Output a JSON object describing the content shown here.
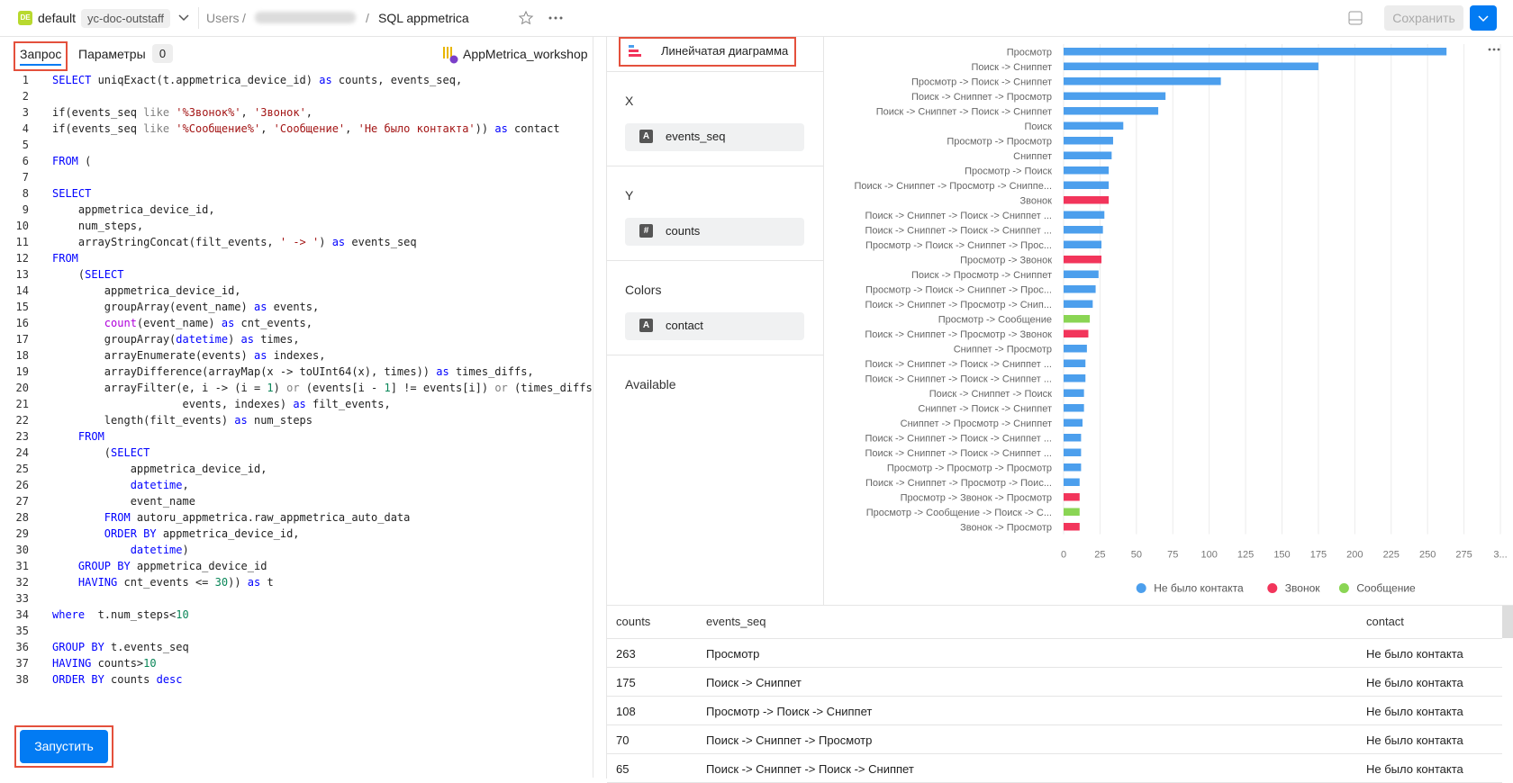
{
  "header": {
    "logo": "DE",
    "workspace": "default",
    "folder": "yc-doc-outstaff",
    "crumb": "Users",
    "separator": "/",
    "title": "SQL appmetrica",
    "save": "Сохранить"
  },
  "editor": {
    "tabs": [
      "Запрос",
      "Параметры"
    ],
    "params_count": "0",
    "connection": "AppMetrica_workshop",
    "run": "Запустить",
    "code_colors": {
      "k": "#0000ff",
      "s": "#a31515",
      "n": "#098658",
      "g": "#808080",
      "m": "#af00db"
    },
    "lines": [
      {
        "n": 1,
        "code": [
          [
            "SELECT",
            "k"
          ],
          " uniqExact(t.appmetrica_device_id) ",
          [
            "as",
            "k"
          ],
          " counts, events_seq,"
        ]
      },
      {
        "n": 2,
        "code": []
      },
      {
        "n": 3,
        "code": [
          "if(events_seq ",
          [
            "like",
            "g"
          ],
          " ",
          [
            "'%Звонок%'",
            "s"
          ],
          ", ",
          [
            "'Звонок'",
            "s"
          ],
          ","
        ]
      },
      {
        "n": 4,
        "code": [
          "if(events_seq ",
          [
            "like",
            "g"
          ],
          " ",
          [
            "'%Сообщение%'",
            "s"
          ],
          ", ",
          [
            "'Сообщение'",
            "s"
          ],
          ", ",
          [
            "'Не было контакта'",
            "s"
          ],
          ")) ",
          [
            "as",
            "k"
          ],
          " contact"
        ]
      },
      {
        "n": 5,
        "code": []
      },
      {
        "n": 6,
        "code": [
          [
            "FROM",
            "k"
          ],
          " ("
        ]
      },
      {
        "n": 7,
        "code": []
      },
      {
        "n": 8,
        "code": [
          [
            "SELECT",
            "k"
          ]
        ]
      },
      {
        "n": 9,
        "code": [
          "    appmetrica_device_id,"
        ]
      },
      {
        "n": 10,
        "code": [
          "    num_steps,"
        ]
      },
      {
        "n": 11,
        "code": [
          "    arrayStringConcat(filt_events, ",
          [
            "' -> '",
            "s"
          ],
          ") ",
          [
            "as",
            "k"
          ],
          " events_seq"
        ]
      },
      {
        "n": 12,
        "code": [
          [
            "FROM",
            "k"
          ]
        ]
      },
      {
        "n": 13,
        "code": [
          "    (",
          [
            "SELECT",
            "k"
          ]
        ]
      },
      {
        "n": 14,
        "code": [
          "        appmetrica_device_id,"
        ]
      },
      {
        "n": 15,
        "code": [
          "        groupArray(event_name) ",
          [
            "as",
            "k"
          ],
          " events,"
        ]
      },
      {
        "n": 16,
        "code": [
          "        ",
          [
            "count",
            "m"
          ],
          "(event_name) ",
          [
            "as",
            "k"
          ],
          " cnt_events,"
        ]
      },
      {
        "n": 17,
        "code": [
          "        groupArray(",
          [
            "datetime",
            "k"
          ],
          ") ",
          [
            "as",
            "k"
          ],
          " times,"
        ]
      },
      {
        "n": 18,
        "code": [
          "        arrayEnumerate(events) ",
          [
            "as",
            "k"
          ],
          " indexes,"
        ]
      },
      {
        "n": 19,
        "code": [
          "        arrayDifference(arrayMap(x -> toUInt64(x), times)) ",
          [
            "as",
            "k"
          ],
          " times_diffs,"
        ]
      },
      {
        "n": 20,
        "code": [
          "        arrayFilter(e, i -> (i = ",
          [
            "1",
            "n"
          ],
          ") ",
          [
            "or",
            "g"
          ],
          " (events[i - ",
          [
            "1",
            "n"
          ],
          "] != events[i]) ",
          [
            "or",
            "g"
          ],
          " (times_diffs[i]"
        ]
      },
      {
        "n": 21,
        "code": [
          "                    events, indexes) ",
          [
            "as",
            "k"
          ],
          " filt_events,"
        ]
      },
      {
        "n": 22,
        "code": [
          "        length(filt_events) ",
          [
            "as",
            "k"
          ],
          " num_steps"
        ]
      },
      {
        "n": 23,
        "code": [
          "    ",
          [
            "FROM",
            "k"
          ]
        ]
      },
      {
        "n": 24,
        "code": [
          "        (",
          [
            "SELECT",
            "k"
          ]
        ]
      },
      {
        "n": 25,
        "code": [
          "            appmetrica_device_id,"
        ]
      },
      {
        "n": 26,
        "code": [
          "            ",
          [
            "datetime",
            "k"
          ],
          ","
        ]
      },
      {
        "n": 27,
        "code": [
          "            event_name"
        ]
      },
      {
        "n": 28,
        "code": [
          "        ",
          [
            "FROM",
            "k"
          ],
          " autoru_appmetrica.raw_appmetrica_auto_data"
        ]
      },
      {
        "n": 29,
        "code": [
          "        ",
          [
            "ORDER BY",
            "k"
          ],
          " appmetrica_device_id,"
        ]
      },
      {
        "n": 30,
        "code": [
          "            ",
          [
            "datetime",
            "k"
          ],
          ")"
        ]
      },
      {
        "n": 31,
        "code": [
          "    ",
          [
            "GROUP BY",
            "k"
          ],
          " appmetrica_device_id"
        ]
      },
      {
        "n": 32,
        "code": [
          "    ",
          [
            "HAVING",
            "k"
          ],
          " cnt_events <= ",
          [
            "30",
            "n"
          ],
          ")) ",
          [
            "as",
            "k"
          ],
          " t"
        ]
      },
      {
        "n": 33,
        "code": []
      },
      {
        "n": 34,
        "code": [
          [
            "where",
            "k"
          ],
          "  t.num_steps<",
          [
            "10",
            "n"
          ]
        ]
      },
      {
        "n": 35,
        "code": []
      },
      {
        "n": 36,
        "code": [
          [
            "GROUP BY",
            "k"
          ],
          " t.events_seq"
        ]
      },
      {
        "n": 37,
        "code": [
          [
            "HAVING",
            "k"
          ],
          " counts>",
          [
            "10",
            "n"
          ]
        ]
      },
      {
        "n": 38,
        "code": [
          [
            "ORDER BY",
            "k"
          ],
          " counts ",
          [
            "desc",
            "k"
          ]
        ]
      }
    ]
  },
  "wizard": {
    "chart_type": "Линейчатая диаграмма",
    "sections": [
      {
        "title": "X",
        "field": {
          "icon": "A",
          "name": "events_seq"
        }
      },
      {
        "title": "Y",
        "field": {
          "icon": "#",
          "name": "counts"
        }
      },
      {
        "title": "Colors",
        "field": {
          "icon": "A",
          "name": "contact"
        }
      },
      {
        "title": "Available"
      }
    ]
  },
  "chart_data": {
    "type": "hbar",
    "categories": [
      "Просмотр",
      "Поиск -> Сниппет",
      "Просмотр -> Поиск -> Сниппет",
      "Поиск -> Сниппет -> Просмотр",
      "Поиск -> Сниппет -> Поиск -> Сниппет",
      "Поиск",
      "Просмотр -> Просмотр",
      "Сниппет",
      "Просмотр -> Поиск",
      "Поиск -> Сниппет -> Просмотр -> Сниппе...",
      "Звонок",
      "Поиск -> Сниппет -> Поиск -> Сниппет ...",
      "Поиск -> Сниппет -> Поиск -> Сниппет ...",
      "Просмотр -> Поиск -> Сниппет -> Прос...",
      "Просмотр -> Звонок",
      "Поиск -> Просмотр -> Сниппет",
      "Просмотр -> Поиск -> Сниппет -> Прос...",
      "Поиск -> Сниппет -> Просмотр -> Снип...",
      "Просмотр -> Сообщение",
      "Поиск -> Сниппет -> Просмотр -> Звонок",
      "Сниппет -> Просмотр",
      "Поиск -> Сниппет -> Поиск -> Сниппет ...",
      "Поиск -> Сниппет -> Поиск -> Сниппет ...",
      "Поиск -> Сниппет -> Поиск",
      "Сниппет -> Поиск -> Сниппет",
      "Сниппет -> Просмотр -> Сниппет",
      "Поиск -> Сниппет -> Поиск -> Сниппет ...",
      "Поиск -> Сниппет -> Поиск -> Сниппет ...",
      "Просмотр -> Просмотр -> Просмотр",
      "Поиск -> Сниппет -> Просмотр -> Поис...",
      "Просмотр -> Звонок -> Просмотр",
      "Просмотр -> Сообщение -> Поиск -> С...",
      "Звонок -> Просмотр"
    ],
    "series": [
      {
        "name": "Не было контакта",
        "color": "#4c9fed",
        "values": [
          263,
          175,
          108,
          70,
          65,
          41,
          34,
          33,
          31,
          31,
          null,
          28,
          27,
          26,
          null,
          24,
          22,
          20,
          null,
          null,
          16,
          15,
          15,
          14,
          14,
          13,
          12,
          12,
          12,
          11,
          null,
          null,
          null
        ]
      },
      {
        "name": "Звонок",
        "color": "#f2355b",
        "values": [
          null,
          null,
          null,
          null,
          null,
          null,
          null,
          null,
          null,
          null,
          31,
          null,
          null,
          null,
          26,
          null,
          null,
          null,
          null,
          17,
          null,
          null,
          null,
          null,
          null,
          null,
          null,
          null,
          null,
          null,
          11,
          null,
          11
        ]
      },
      {
        "name": "Сообщение",
        "color": "#8ad554",
        "values": [
          null,
          null,
          null,
          null,
          null,
          null,
          null,
          null,
          null,
          null,
          null,
          null,
          null,
          null,
          null,
          null,
          null,
          null,
          18,
          null,
          null,
          null,
          null,
          null,
          null,
          null,
          null,
          null,
          null,
          null,
          null,
          11,
          null
        ]
      }
    ],
    "xlim": [
      0,
      300
    ],
    "xticks": [
      0,
      25,
      50,
      75,
      100,
      125,
      150,
      175,
      200,
      225,
      250,
      275,
      {
        "value": 300,
        "label": "3..."
      }
    ],
    "grid": true,
    "legend": "bottom"
  },
  "table": {
    "columns": [
      "counts",
      "events_seq",
      "contact"
    ],
    "rows": [
      [
        "263",
        "Просмотр",
        "Не было контакта"
      ],
      [
        "175",
        "Поиск -> Сниппет",
        "Не было контакта"
      ],
      [
        "108",
        "Просмотр -> Поиск -> Сниппет",
        "Не было контакта"
      ],
      [
        "70",
        "Поиск -> Сниппет -> Просмотр",
        "Не было контакта"
      ],
      [
        "65",
        "Поиск -> Сниппет -> Поиск -> Сниппет",
        "Не было контакта"
      ]
    ]
  }
}
